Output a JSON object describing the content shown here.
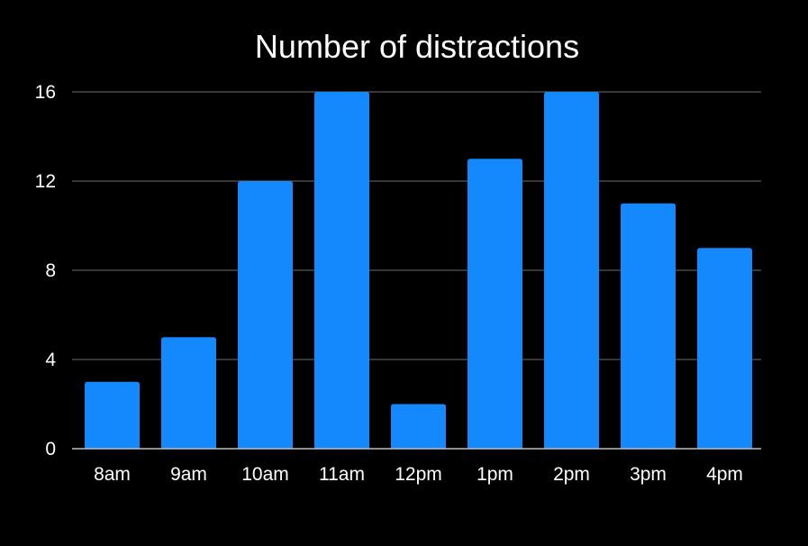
{
  "chart_data": {
    "type": "bar",
    "title": "Number of distractions",
    "xlabel": "",
    "ylabel": "",
    "categories": [
      "8am",
      "9am",
      "10am",
      "11am",
      "12pm",
      "1pm",
      "2pm",
      "3pm",
      "4pm"
    ],
    "values": [
      3,
      5,
      12,
      16,
      2,
      13,
      16,
      11,
      9
    ],
    "ylim": [
      0,
      16
    ],
    "yticks": [
      "0",
      "4",
      "8",
      "12",
      "16"
    ],
    "grid": true,
    "legend": "none",
    "colors": {
      "background": "#000000",
      "bar": "#1389fd",
      "text": "#ffffff",
      "grid": "#6e6e6e"
    }
  }
}
